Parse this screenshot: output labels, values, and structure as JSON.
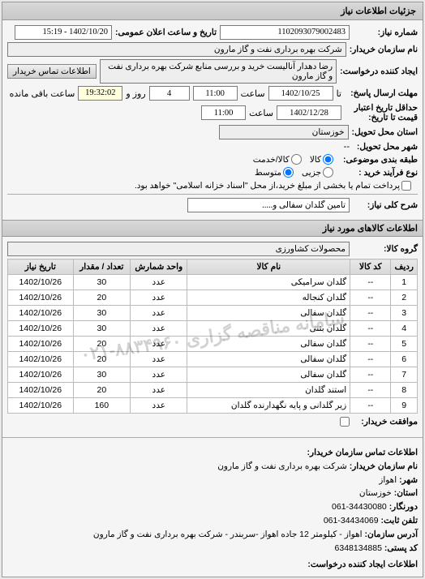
{
  "tab": {
    "title": "جزئیات اطلاعات نیاز"
  },
  "header": {
    "ref_label": "شماره نیاز:",
    "ref_value": "1102093079002483",
    "announce_label": "تاریخ و ساعت اعلان عمومی:",
    "announce_value": "1402/10/20 - 15:19"
  },
  "buyer_org": {
    "label": "نام سازمان خریدار:",
    "value": "شرکت بهره برداری نفت و گاز مارون"
  },
  "requester": {
    "label": "ایجاد کننده درخواست:",
    "value": "رضا دهدار آنالیست خرید و بررسی منابع شرکت بهره برداری نفت و گاز مارون",
    "contact_btn": "اطلاعات تماس خریدار"
  },
  "deadline": {
    "label": "مهلت ارسال پاسخ:",
    "until": "تا",
    "date": "1402/10/25",
    "time_label": "ساعت",
    "time": "11:00",
    "days_label": "روز و",
    "days": "4",
    "remain_label": "ساعت باقی مانده",
    "remain_time": "19:32:02"
  },
  "validity": {
    "label1": "حداقل تاریخ اعتبار",
    "label2": "قیمت تا تاریخ:",
    "date": "1402/12/28",
    "time_label": "ساعت",
    "time": "11:00"
  },
  "province": {
    "label": "استان محل تحویل:",
    "value": "خوزستان"
  },
  "city": {
    "label": "شهر محل تحویل:",
    "label2": "--"
  },
  "classification": {
    "label": "طبقه بندی موضوعی:",
    "opt_goods": "کالا",
    "opt_service": "کالا/خدمت",
    "selected": "goods"
  },
  "purchase_type": {
    "label": "نوع فرآیند خرید :",
    "opt_small": "جزیی",
    "opt_medium": "متوسط",
    "selected": "medium",
    "note": "پرداخت تمام یا بخشی از مبلغ خرید،از محل \"اسناد خزانه اسلامی\" خواهد بود.",
    "note_checked": false
  },
  "subject": {
    "label": "شرح کلی نیاز:",
    "value": "تامین گلدان سفالی و....."
  },
  "goods_section_title": "اطلاعات کالاهای مورد نیاز",
  "goods_group": {
    "label": "گروه کالا:",
    "value": "محصولات کشاورزی"
  },
  "table": {
    "columns": [
      "ردیف",
      "کد کالا",
      "نام کالا",
      "واحد شمارش",
      "تعداد / مقدار",
      "تاریخ نیاز"
    ],
    "rows": [
      [
        "1",
        "--",
        "گلدان سرامیکی",
        "عدد",
        "30",
        "1402/10/26"
      ],
      [
        "2",
        "--",
        "گلدان کنجاله",
        "عدد",
        "20",
        "1402/10/26"
      ],
      [
        "3",
        "--",
        "گلدان سفالی",
        "عدد",
        "30",
        "1402/10/26"
      ],
      [
        "4",
        "--",
        "گلدان بتنی",
        "عدد",
        "30",
        "1402/10/26"
      ],
      [
        "5",
        "--",
        "گلدان سفالی",
        "عدد",
        "20",
        "1402/10/26"
      ],
      [
        "6",
        "--",
        "گلدان سفالی",
        "عدد",
        "20",
        "1402/10/26"
      ],
      [
        "7",
        "--",
        "گلدان سفالی",
        "عدد",
        "30",
        "1402/10/26"
      ],
      [
        "8",
        "--",
        "استند گلدان",
        "عدد",
        "20",
        "1402/10/26"
      ],
      [
        "9",
        "--",
        "زیر گلدانی و پایه نگهدارنده گلدان",
        "عدد",
        "160",
        "1402/10/26"
      ]
    ],
    "col_widths": [
      "6%",
      "10%",
      "40%",
      "14%",
      "14%",
      "16%"
    ]
  },
  "watermark": "سامانه مناقصه گزاری\n۸۸۳۴۹۶۰-۰۲۱",
  "agreement": {
    "label": "موافقت خریدار:",
    "checked": false
  },
  "footer": {
    "title": "اطلاعات تماس سازمان خریدار:",
    "org_label": "نام سازمان خریدار:",
    "org": "شرکت بهره برداری نفت و گاز مارون",
    "city_label": "شهر:",
    "city": "اهواز",
    "province_label": "استان:",
    "province": "خوزستان",
    "fax_label": "دورنگار:",
    "fax": "34430080-061",
    "tel_label": "تلفن ثابت:",
    "tel": "34434069-061",
    "addr_label": "آدرس سازمان:",
    "addr": "اهواز - کیلومتر 12 جاده اهواز -سربندر - شرکت بهره برداری نفت و گاز مارون",
    "post_label": "کد پستی:",
    "post": "6348134885",
    "creator_label": "اطلاعات ایجاد کننده درخواست:"
  }
}
